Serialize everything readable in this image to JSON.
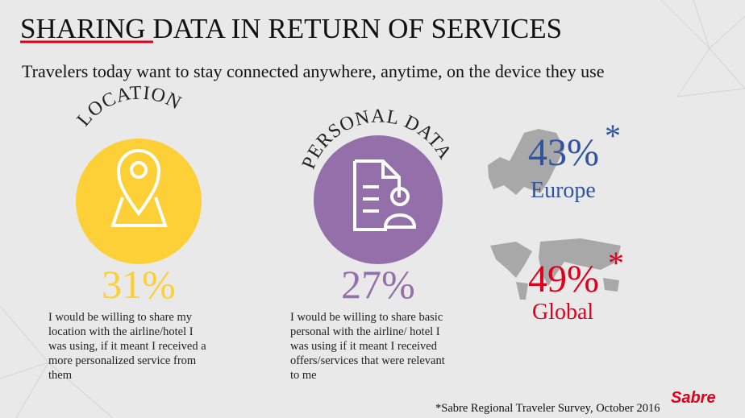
{
  "header": {
    "title": "SHARING DATA IN RETURN OF SERVICES",
    "subtitle": "Travelers today want to stay connected anywhere, anytime, on the device they use"
  },
  "sections": [
    {
      "label": "LOCATION",
      "percent": "31%",
      "description": [
        "I would be willing to share my",
        "location with the airline/hotel I",
        "was using, if it meant I received a",
        "more personalized service from",
        "them"
      ]
    },
    {
      "label": "PERSONAL DATA",
      "percent": "27%",
      "description": [
        "I would be willing to share basic",
        "personal with the airline/ hotel I",
        "was using if it meant I received",
        "offers/services that were relevant",
        "to me"
      ]
    }
  ],
  "stats": [
    {
      "percent": "43%",
      "asterisk": "*",
      "region": "Europe"
    },
    {
      "percent": "49%",
      "asterisk": "*",
      "region": "Global"
    }
  ],
  "footnote": "*Sabre Regional Traveler Survey, October 2016",
  "logo": "Sabre"
}
